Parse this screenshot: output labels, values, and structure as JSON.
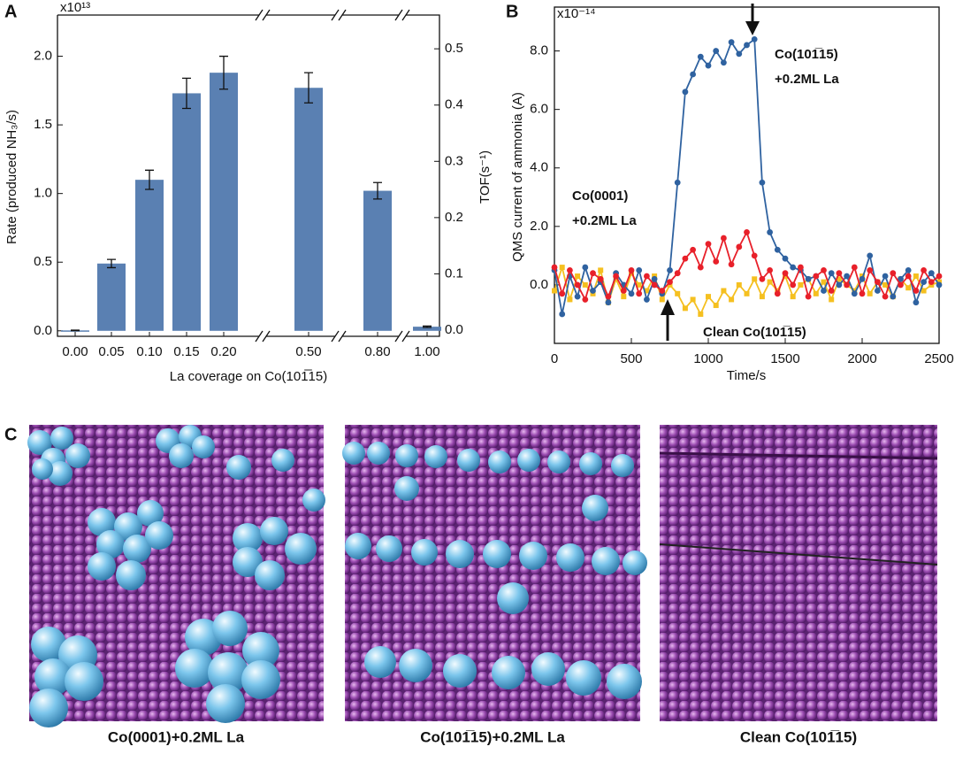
{
  "chart_data": [
    {
      "type": "bar",
      "panel_label": "A",
      "exponent": "x10¹³",
      "xlabel": "La coverage on Co(101̅15)",
      "ylabel": "Rate (produced NH₃/s)",
      "y2label": "TOF(s⁻¹)",
      "categories": [
        "0.00",
        "0.05",
        "0.10",
        "0.15",
        "0.20",
        "0.50",
        "0.80",
        "1.00"
      ],
      "values": [
        0.003,
        0.49,
        1.1,
        1.73,
        1.88,
        1.77,
        1.02,
        0.03
      ],
      "errors": [
        0.002,
        0.03,
        0.07,
        0.11,
        0.12,
        0.11,
        0.06,
        0.005
      ],
      "color": "#5a80b2",
      "ylim": [
        -0.04,
        2.3
      ],
      "yticks": [
        {
          "value": 0,
          "label": "0.0"
        },
        0.5,
        {
          "value": 1,
          "label": "1.0"
        },
        1.5,
        {
          "value": 2,
          "label": "2.0"
        }
      ],
      "y2lim": [
        -0.011,
        0.56
      ],
      "y2ticks": [
        {
          "value": 0,
          "label": "0.0"
        },
        0.1,
        0.2,
        0.3,
        0.4,
        0.5
      ]
    },
    {
      "type": "line",
      "panel_label": "B",
      "exponent": "x10⁻¹⁴",
      "xlabel": "Time/s",
      "ylabel": "QMS current of ammonia (A)",
      "x": [
        0,
        50,
        100,
        150,
        200,
        250,
        300,
        350,
        400,
        450,
        500,
        550,
        600,
        650,
        700,
        750,
        800,
        850,
        900,
        950,
        1000,
        1050,
        1100,
        1150,
        1200,
        1250,
        1300,
        1350,
        1400,
        1450,
        1500,
        1550,
        1600,
        1650,
        1700,
        1750,
        1800,
        1850,
        1900,
        1950,
        2000,
        2050,
        2100,
        2150,
        2200,
        2250,
        2300,
        2350,
        2400,
        2450,
        2500
      ],
      "series": [
        {
          "labels": [
            "Clean Co(101̅15)"
          ],
          "color": "#f5c020",
          "values": [
            -0.2,
            0.6,
            -0.5,
            0.3,
            0.0,
            -0.3,
            0.5,
            -0.6,
            0.2,
            -0.4,
            0.4,
            0.0,
            -0.2,
            0.3,
            -0.5,
            0.0,
            -0.3,
            -0.8,
            -0.5,
            -1.0,
            -0.4,
            -0.7,
            -0.2,
            -0.5,
            0.0,
            -0.3,
            0.2,
            -0.4,
            0.1,
            -0.2,
            0.3,
            -0.4,
            0.0,
            0.2,
            -0.3,
            0.1,
            -0.5,
            0.2,
            0.0,
            -0.2,
            0.3,
            -0.3,
            0.1,
            0.0,
            -0.4,
            0.2,
            -0.1,
            0.3,
            -0.2,
            0.0,
            0.1
          ]
        },
        {
          "labels": [
            "Co(101̅15)",
            "+0.2ML La"
          ],
          "color": "#2f62a0",
          "values": [
            0.5,
            -1.0,
            0.3,
            -0.4,
            0.6,
            -0.2,
            0.1,
            -0.6,
            0.4,
            0.0,
            -0.3,
            0.5,
            -0.5,
            0.2,
            -0.3,
            0.5,
            3.5,
            6.6,
            7.2,
            7.8,
            7.5,
            8.0,
            7.6,
            8.3,
            7.9,
            8.2,
            8.4,
            3.5,
            1.8,
            1.2,
            0.9,
            0.6,
            0.5,
            0.2,
            0.3,
            -0.2,
            0.4,
            0.0,
            0.3,
            -0.3,
            0.2,
            1.0,
            -0.2,
            0.3,
            -0.4,
            0.2,
            0.5,
            -0.6,
            0.1,
            0.4,
            0.0
          ]
        },
        {
          "labels": [
            "Co(0001)",
            "+0.2ML La"
          ],
          "color": "#e8202a",
          "values": [
            0.6,
            -0.3,
            0.5,
            0.0,
            -0.5,
            0.4,
            0.2,
            -0.4,
            0.3,
            -0.2,
            0.5,
            -0.3,
            0.3,
            0.0,
            -0.2,
            0.1,
            0.4,
            0.9,
            1.2,
            0.6,
            1.4,
            0.8,
            1.6,
            0.7,
            1.3,
            1.8,
            1.0,
            0.2,
            0.5,
            -0.3,
            0.4,
            0.0,
            0.6,
            -0.4,
            0.3,
            0.5,
            -0.2,
            0.4,
            0.0,
            0.6,
            -0.3,
            0.5,
            0.1,
            -0.4,
            0.4,
            0.0,
            0.3,
            -0.2,
            0.5,
            0.1,
            0.3
          ]
        }
      ],
      "xlim": [
        0,
        2500
      ],
      "xticks": [
        0,
        500,
        1000,
        1500,
        2000,
        2500
      ],
      "ylim": [
        -2.0,
        9.5
      ],
      "yticks": [
        {
          "value": 0,
          "label": "0.0"
        },
        {
          "value": 2,
          "label": "2.0"
        },
        {
          "value": 4,
          "label": "4.0"
        },
        {
          "value": 6,
          "label": "6.0"
        },
        {
          "value": 8,
          "label": "8.0"
        }
      ]
    }
  ],
  "panel_c": {
    "label": "C",
    "captions": [
      "Co(0001)+0.2ML La",
      "Co(101̅15)+0.2ML La",
      "Clean Co(101̅15)"
    ]
  }
}
